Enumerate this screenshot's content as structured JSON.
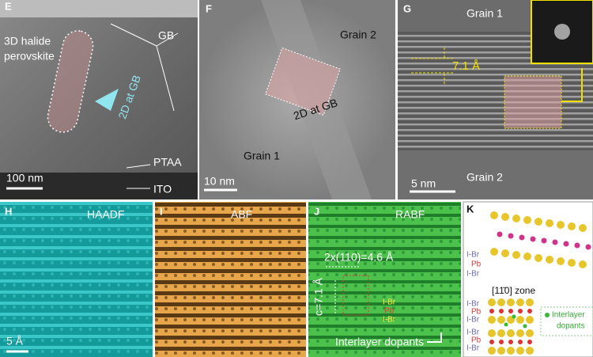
{
  "panels": {
    "E": {
      "label": "E",
      "perovskite": [
        "3D halide",
        "perovskite"
      ],
      "gb": "GB",
      "gb_2d": "2D at GB",
      "ptaa": "PTAA",
      "ito": "ITO",
      "scale": "100 nm"
    },
    "F": {
      "label": "F",
      "grain_2": "Grain 2",
      "gb_2d": "2D at GB",
      "grain_1": "Grain 1",
      "scale": "10 nm"
    },
    "G": {
      "label": "G",
      "grain_1": "Grain 1",
      "spacing": "7.1 Å",
      "grain_2": "Grain 2",
      "scale": "5 nm"
    },
    "H": {
      "label": "H",
      "mode": "HAADF",
      "scale": "5 Å"
    },
    "I": {
      "label": "I",
      "mode": "ABF"
    },
    "J": {
      "label": "J",
      "mode": "RABF",
      "width": "2x(110)=4.6 Å",
      "c": "c=7.1 Å",
      "layers": [
        "I-Br",
        "Pb",
        "I-Br"
      ],
      "dopants": "Interlayer dopants"
    },
    "K": {
      "label": "K",
      "top_layers": [
        "I-Br",
        "Pb",
        "I-Br"
      ],
      "zone": "[11̄0] zone",
      "bottom_layers": [
        "I-Br",
        "Pb",
        "I-Br",
        "I-Br",
        "Pb",
        "I-Br"
      ],
      "dopants": [
        "Interlayer",
        "dopants"
      ]
    }
  }
}
